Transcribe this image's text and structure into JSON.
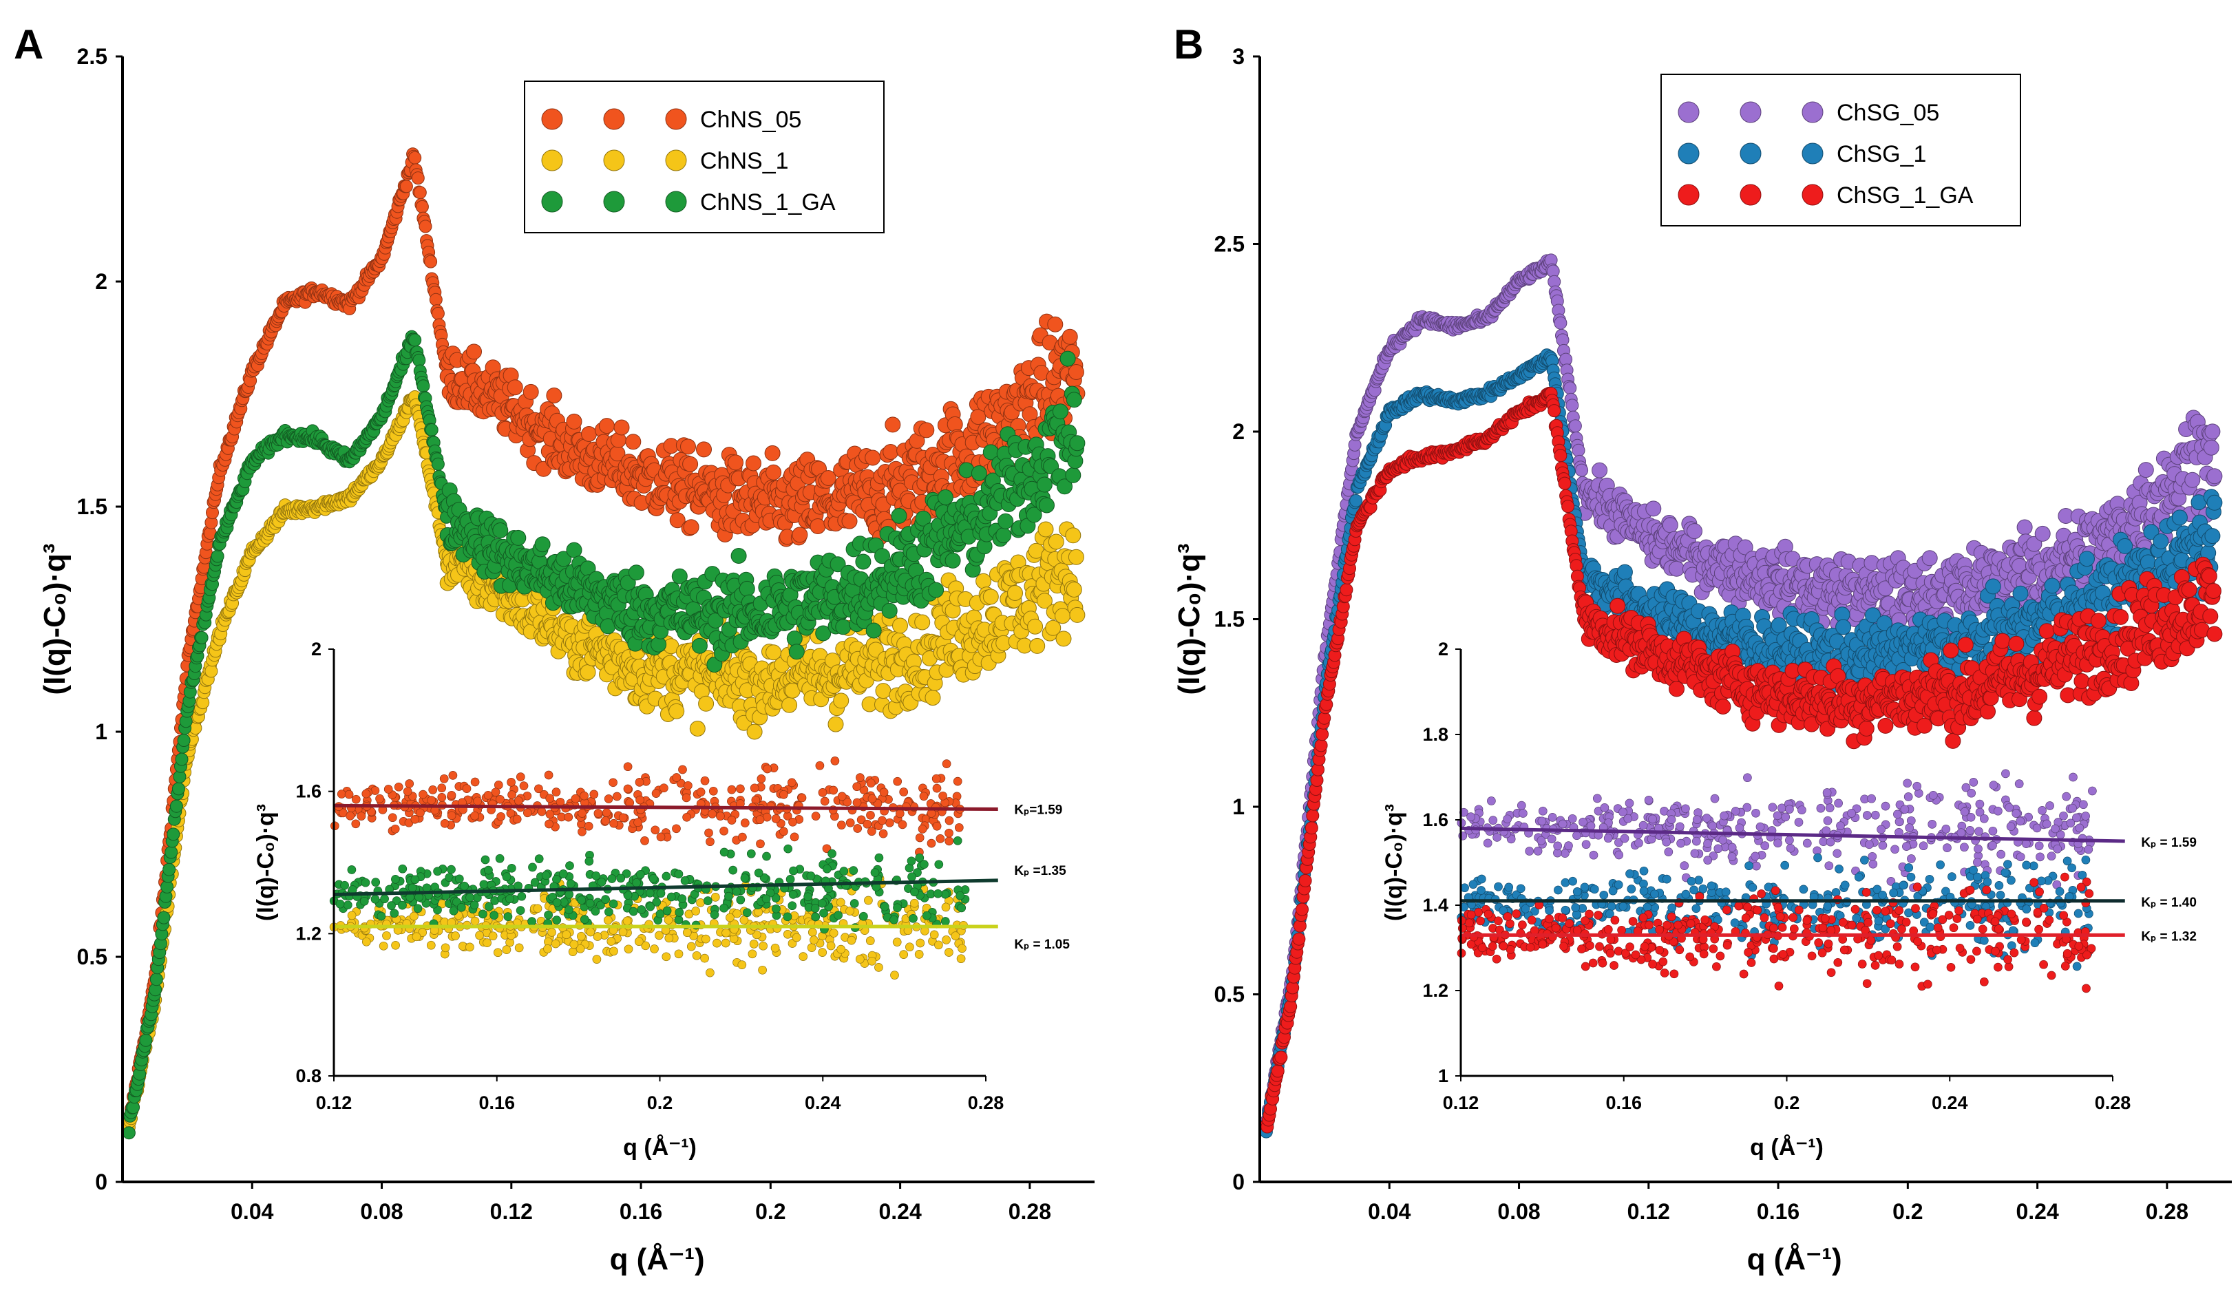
{
  "chart_data": [
    {
      "panel": "A",
      "type": "scatter",
      "ylabel": "(I(q)-C₀)·q³",
      "xlabel": "q (Å⁻¹)",
      "xlim": [
        0.0,
        0.3
      ],
      "ylim": [
        0.0,
        2.5
      ],
      "xticks": [
        0.04,
        0.08,
        0.12,
        0.16,
        0.2,
        0.24,
        0.28
      ],
      "xtick_labels": [
        "0.04",
        "0.08",
        "0.12",
        "0.16",
        "0.2",
        "0.24",
        "0.28"
      ],
      "yticks": [
        0,
        0.5,
        1,
        1.5,
        2,
        2.5
      ],
      "ytick_labels": [
        "0",
        "0.5",
        "1",
        "1.5",
        "2",
        "2.5"
      ],
      "legend": "top-right",
      "series": [
        {
          "name": "ChNS_05",
          "color": "#F0541E",
          "x": [
            0.0,
            0.01,
            0.02,
            0.03,
            0.04,
            0.05,
            0.06,
            0.07,
            0.08,
            0.09,
            0.1,
            0.12,
            0.14,
            0.16,
            0.18,
            0.2,
            0.22,
            0.24,
            0.26,
            0.28,
            0.29
          ],
          "y": [
            0.05,
            0.45,
            1.15,
            1.58,
            1.8,
            1.95,
            1.98,
            1.95,
            2.05,
            2.28,
            1.8,
            1.72,
            1.62,
            1.57,
            1.53,
            1.5,
            1.51,
            1.55,
            1.62,
            1.73,
            1.8
          ]
        },
        {
          "name": "ChNS_1",
          "color": "#F5C518",
          "x": [
            0.0,
            0.01,
            0.02,
            0.03,
            0.04,
            0.05,
            0.06,
            0.07,
            0.08,
            0.09,
            0.1,
            0.12,
            0.14,
            0.16,
            0.18,
            0.2,
            0.22,
            0.24,
            0.26,
            0.28,
            0.29
          ],
          "y": [
            0.05,
            0.4,
            0.95,
            1.22,
            1.4,
            1.49,
            1.5,
            1.52,
            1.6,
            1.75,
            1.38,
            1.3,
            1.2,
            1.14,
            1.12,
            1.12,
            1.13,
            1.17,
            1.23,
            1.3,
            1.36
          ]
        },
        {
          "name": "ChNS_1_GA",
          "color": "#1E9A3A",
          "x": [
            0.0,
            0.01,
            0.02,
            0.03,
            0.04,
            0.05,
            0.06,
            0.07,
            0.08,
            0.09,
            0.1,
            0.12,
            0.14,
            0.16,
            0.18,
            0.2,
            0.22,
            0.24,
            0.26,
            0.28,
            0.29
          ],
          "y": [
            0.05,
            0.42,
            1.05,
            1.42,
            1.6,
            1.66,
            1.65,
            1.6,
            1.7,
            1.88,
            1.48,
            1.38,
            1.32,
            1.27,
            1.26,
            1.27,
            1.3,
            1.37,
            1.45,
            1.57,
            1.66
          ]
        }
      ],
      "inset": {
        "xlim": [
          0.12,
          0.28
        ],
        "ylim": [
          0.8,
          2.0
        ],
        "xticks": [
          0.12,
          0.16,
          0.2,
          0.24,
          0.28
        ],
        "xtick_labels": [
          "0.12",
          "0.16",
          "0.2",
          "0.24",
          "0.28"
        ],
        "yticks": [
          0.8,
          1.2,
          1.6,
          2.0
        ],
        "ytick_labels": [
          "0.8",
          "1.2",
          "1.6",
          "2"
        ],
        "xlabel": "q (Å⁻¹)",
        "ylabel": "(I(q)-C₀)·q³",
        "fits": [
          {
            "series": "ChNS_05",
            "label": "Kₚ=1.59",
            "value": 1.59,
            "y_start": 1.56,
            "y_end": 1.55,
            "color": "#8B1A2B"
          },
          {
            "series": "ChNS_1_GA",
            "label": "Kₚ =1.35",
            "value": 1.35,
            "y_start": 1.31,
            "y_end": 1.35,
            "color": "#0F3B2E"
          },
          {
            "series": "ChNS_1",
            "label": "Kₚ = 1.05",
            "value": 1.05,
            "y_start": 1.22,
            "y_end": 1.22,
            "color": "#C9D21C"
          }
        ],
        "series_means": [
          1.56,
          1.22,
          1.32
        ]
      }
    },
    {
      "panel": "B",
      "type": "scatter",
      "ylabel": "(I(q)-C₀)·q³",
      "xlabel": "q (Å⁻¹)",
      "xlim": [
        0.0,
        0.3
      ],
      "ylim": [
        0.0,
        3.0
      ],
      "xticks": [
        0.04,
        0.08,
        0.12,
        0.16,
        0.2,
        0.24,
        0.28
      ],
      "xtick_labels": [
        "0.04",
        "0.08",
        "0.12",
        "0.16",
        "0.2",
        "0.24",
        "0.28"
      ],
      "yticks": [
        0,
        0.5,
        1,
        1.5,
        2,
        2.5,
        3
      ],
      "ytick_labels": [
        "0",
        "0.5",
        "1",
        "1.5",
        "2",
        "2.5",
        "3"
      ],
      "legend": "top-right",
      "series": [
        {
          "name": "ChSG_05",
          "color": "#9B6FD0",
          "x": [
            0.0,
            0.01,
            0.02,
            0.03,
            0.04,
            0.05,
            0.06,
            0.07,
            0.08,
            0.09,
            0.1,
            0.12,
            0.14,
            0.16,
            0.18,
            0.2,
            0.22,
            0.24,
            0.26,
            0.28,
            0.29
          ],
          "y": [
            0.05,
            0.55,
            1.4,
            2.0,
            2.22,
            2.3,
            2.28,
            2.3,
            2.4,
            2.45,
            1.85,
            1.72,
            1.65,
            1.6,
            1.57,
            1.56,
            1.58,
            1.63,
            1.7,
            1.85,
            1.95
          ]
        },
        {
          "name": "ChSG_1",
          "color": "#1F7FB8",
          "x": [
            0.0,
            0.01,
            0.02,
            0.03,
            0.04,
            0.05,
            0.06,
            0.07,
            0.08,
            0.09,
            0.1,
            0.12,
            0.14,
            0.16,
            0.18,
            0.2,
            0.22,
            0.24,
            0.26,
            0.28,
            0.29
          ],
          "y": [
            0.05,
            0.52,
            1.3,
            1.85,
            2.05,
            2.1,
            2.08,
            2.1,
            2.15,
            2.2,
            1.62,
            1.52,
            1.46,
            1.42,
            1.4,
            1.41,
            1.43,
            1.48,
            1.55,
            1.65,
            1.72
          ]
        },
        {
          "name": "ChSG_1_GA",
          "color": "#EE1C1C",
          "x": [
            0.0,
            0.01,
            0.02,
            0.03,
            0.04,
            0.05,
            0.06,
            0.07,
            0.08,
            0.09,
            0.1,
            0.12,
            0.14,
            0.16,
            0.18,
            0.2,
            0.22,
            0.24,
            0.26,
            0.28,
            0.29
          ],
          "y": [
            0.05,
            0.5,
            1.25,
            1.75,
            1.9,
            1.93,
            1.95,
            1.98,
            2.05,
            2.1,
            1.5,
            1.42,
            1.35,
            1.3,
            1.28,
            1.29,
            1.31,
            1.36,
            1.43,
            1.5,
            1.55
          ]
        }
      ],
      "inset": {
        "xlim": [
          0.12,
          0.28
        ],
        "ylim": [
          1.0,
          2.0
        ],
        "xticks": [
          0.12,
          0.16,
          0.2,
          0.24,
          0.28
        ],
        "xtick_labels": [
          "0.12",
          "0.16",
          "0.2",
          "0.24",
          "0.28"
        ],
        "yticks": [
          1.0,
          1.2,
          1.4,
          1.6,
          1.8,
          2.0
        ],
        "ytick_labels": [
          "1",
          "1.2",
          "1.4",
          "1.6",
          "1.8",
          "2"
        ],
        "xlabel": "q (Å⁻¹)",
        "ylabel": "(I(q)-C₀)·q³",
        "fits": [
          {
            "series": "ChSG_05",
            "label": "Kₚ = 1.59",
            "value": 1.59,
            "y_start": 1.58,
            "y_end": 1.55,
            "color": "#5B2A86"
          },
          {
            "series": "ChSG_1",
            "label": "Kₚ = 1.40",
            "value": 1.4,
            "y_start": 1.41,
            "y_end": 1.41,
            "color": "#0E2B2E"
          },
          {
            "series": "ChSG_1_GA",
            "label": "Kₚ = 1.32",
            "value": 1.32,
            "y_start": 1.33,
            "y_end": 1.33,
            "color": "#E0202A"
          }
        ],
        "series_means": [
          1.58,
          1.4,
          1.33
        ]
      }
    }
  ]
}
